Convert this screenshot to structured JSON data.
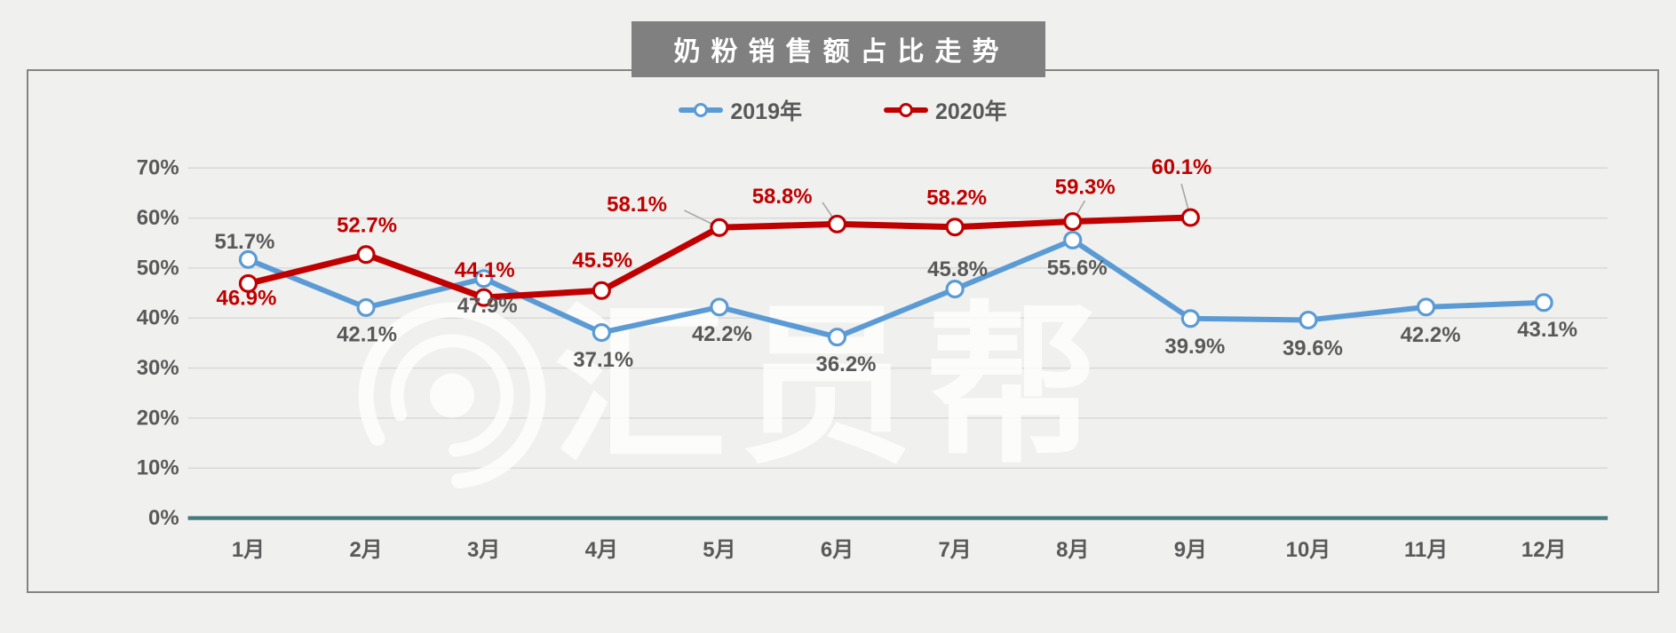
{
  "page": {
    "background_color": "#f0f0ee",
    "frame_border_color": "#848484"
  },
  "header": {
    "title": "奶粉销售额占比走势",
    "title_bg_color": "#808080",
    "title_text_color": "#ffffff"
  },
  "watermark": {
    "brand_text": "汇员帮",
    "logo": "concentric-rings-logo",
    "color": "#ffffff"
  },
  "chart_data": {
    "type": "line",
    "title": "奶粉销售额占比走势",
    "categories": [
      "1月",
      "2月",
      "3月",
      "4月",
      "5月",
      "6月",
      "7月",
      "8月",
      "9月",
      "10月",
      "11月",
      "12月"
    ],
    "series": [
      {
        "name": "2019年",
        "color": "#5B9BD5",
        "label_color": "#595959",
        "marker": "open-circle",
        "values": [
          51.7,
          42.1,
          47.9,
          37.1,
          42.2,
          36.2,
          45.8,
          55.6,
          39.9,
          39.6,
          42.2,
          43.1
        ],
        "labels": [
          "51.7%",
          "42.1%",
          "47.9%",
          "37.1%",
          "42.2%",
          "36.2%",
          "45.8%",
          "55.6%",
          "39.9%",
          "39.6%",
          "42.2%",
          "43.1%"
        ]
      },
      {
        "name": "2020年",
        "color": "#C00000",
        "label_color": "#C00000",
        "marker": "open-circle",
        "values": [
          46.9,
          52.7,
          44.1,
          45.5,
          58.1,
          58.8,
          58.2,
          59.3,
          60.1
        ],
        "labels": [
          "46.9%",
          "52.7%",
          "44.1%",
          "45.5%",
          "58.1%",
          "58.8%",
          "58.2%",
          "59.3%",
          "60.1%"
        ]
      }
    ],
    "y_axis": {
      "ticks": [
        "0%",
        "10%",
        "20%",
        "30%",
        "40%",
        "50%",
        "60%",
        "70%"
      ],
      "min": 0,
      "max": 70,
      "tick_step": 10
    },
    "xlabel": "",
    "ylabel": "",
    "grid": true,
    "legend_position": "top-center",
    "colors": {
      "grid_line": "#d9d9d9",
      "axis_baseline": "#457a7e",
      "tick_text": "#595959",
      "callout_line": "#a6a6a6"
    }
  }
}
